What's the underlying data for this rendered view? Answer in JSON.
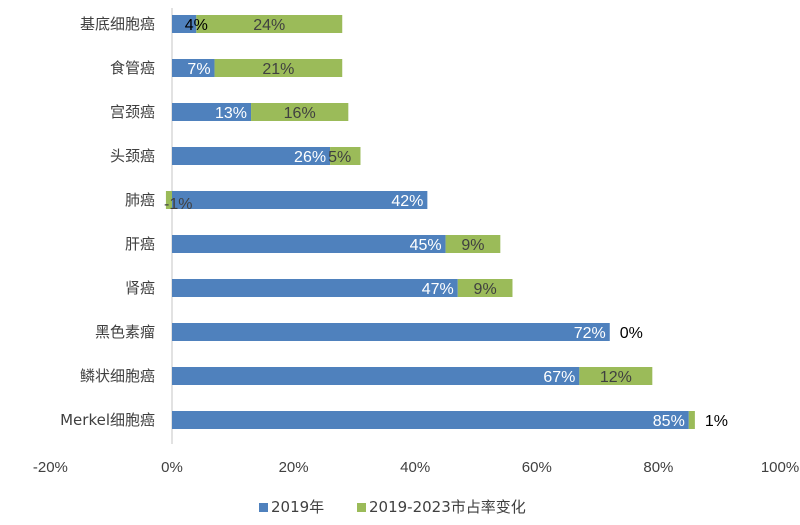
{
  "chart_data": {
    "type": "bar",
    "orientation": "horizontal",
    "stacked": true,
    "categories": [
      "基底细胞癌",
      "食管癌",
      "宫颈癌",
      "头颈癌",
      "肺癌",
      "肝癌",
      "肾癌",
      "黑色素瘤",
      "鳞状细胞癌",
      "Merkel细胞癌"
    ],
    "series": [
      {
        "name": "2019年",
        "color": "#4f81bd",
        "values": [
          4,
          7,
          13,
          26,
          42,
          45,
          47,
          72,
          67,
          85
        ]
      },
      {
        "name": "2019-2023市占率变化",
        "color": "#9bbb59",
        "values": [
          24,
          21,
          16,
          5,
          -1,
          9,
          9,
          0,
          12,
          1
        ]
      }
    ],
    "xlim": [
      -20,
      100
    ],
    "xticks": [
      "-20%",
      "0%",
      "20%",
      "40%",
      "60%",
      "80%",
      "100%"
    ],
    "grid": false,
    "legend": "bottom",
    "data_labels": true
  }
}
